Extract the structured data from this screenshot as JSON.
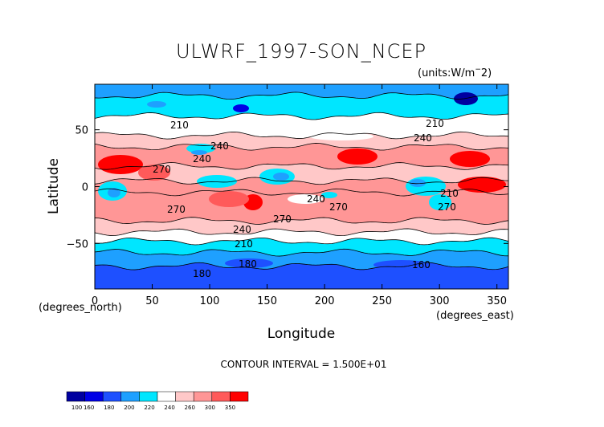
{
  "chart_data": {
    "type": "heatmap",
    "title": "ULWRF_1997-SON_NCEP",
    "units": "(units:W/m^2)",
    "xlabel": "Longitude",
    "ylabel": "Latitude",
    "x_unit_label": "(degrees_east)",
    "y_unit_label": "(degrees_north)",
    "xlim": [
      0,
      360
    ],
    "ylim": [
      -90,
      90
    ],
    "x_ticks": [
      0,
      50,
      100,
      150,
      200,
      250,
      300,
      350
    ],
    "y_ticks": [
      50,
      0,
      -50
    ],
    "contour_interval_text": "CONTOUR INTERVAL = 1.500E+01",
    "contour_labels": [
      "210",
      "240",
      "270",
      "240",
      "270",
      "270",
      "240",
      "270",
      "270",
      "240",
      "210",
      "180",
      "180",
      "160",
      "210",
      "240",
      "210"
    ],
    "colorbar": {
      "ticks": [
        "100",
        "160",
        "180",
        "200",
        "220",
        "240",
        "260",
        "300",
        "350"
      ],
      "colors": [
        "#0000a0",
        "#0000e6",
        "#1e50ff",
        "#1ea0ff",
        "#00e6ff",
        "#ffffff",
        "#ffc8c8",
        "#ff9696",
        "#ff5a5a",
        "#ff0000"
      ]
    },
    "latitude_bands": [
      {
        "lat_from": 90,
        "lat_to": 80,
        "value": 190
      },
      {
        "lat_from": 80,
        "lat_to": 62,
        "value": 205
      },
      {
        "lat_from": 62,
        "lat_to": 45,
        "value": 228
      },
      {
        "lat_from": 45,
        "lat_to": 35,
        "value": 250
      },
      {
        "lat_from": 35,
        "lat_to": 18,
        "value": 275
      },
      {
        "lat_from": 18,
        "lat_to": 5,
        "value": 250
      },
      {
        "lat_from": 5,
        "lat_to": -5,
        "value": 265
      },
      {
        "lat_from": -5,
        "lat_to": -30,
        "value": 278
      },
      {
        "lat_from": -30,
        "lat_to": -40,
        "value": 255
      },
      {
        "lat_from": -40,
        "lat_to": -48,
        "value": 232
      },
      {
        "lat_from": -48,
        "lat_to": -58,
        "value": 212
      },
      {
        "lat_from": -58,
        "lat_to": -70,
        "value": 195
      },
      {
        "lat_from": -70,
        "lat_to": -90,
        "value": 170
      }
    ]
  }
}
